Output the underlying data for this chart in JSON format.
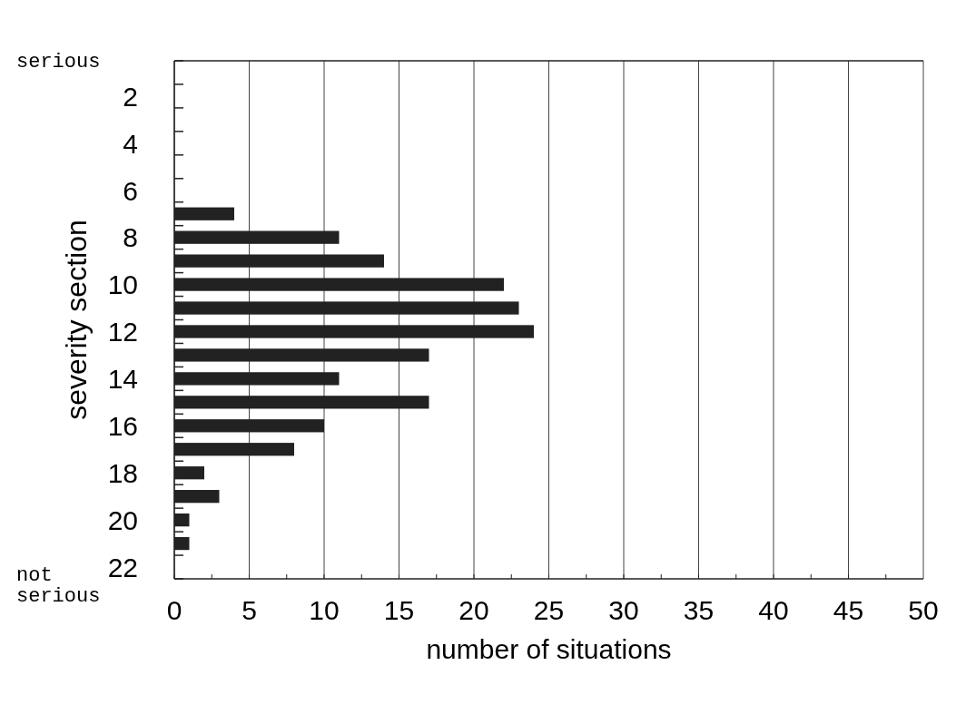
{
  "chart_data": {
    "type": "bar",
    "orientation": "horizontal",
    "xlabel": "number of situations",
    "ylabel": "severity section",
    "categories": [
      null,
      "2",
      null,
      "4",
      null,
      "6",
      null,
      "8",
      null,
      "10",
      null,
      "12",
      null,
      "14",
      null,
      "16",
      null,
      "18",
      null,
      "20",
      null,
      "22"
    ],
    "values": [
      null,
      null,
      null,
      null,
      null,
      null,
      4,
      11,
      14,
      22,
      23,
      24,
      17,
      11,
      17,
      10,
      8,
      2,
      3,
      1,
      1,
      null
    ],
    "color": "#222222",
    "xlim": [
      0,
      50
    ],
    "xticks": [
      0,
      5,
      10,
      15,
      20,
      25,
      30,
      35,
      40,
      45,
      50
    ],
    "grid": "x",
    "annotations": [
      "serious",
      "not serious"
    ]
  }
}
